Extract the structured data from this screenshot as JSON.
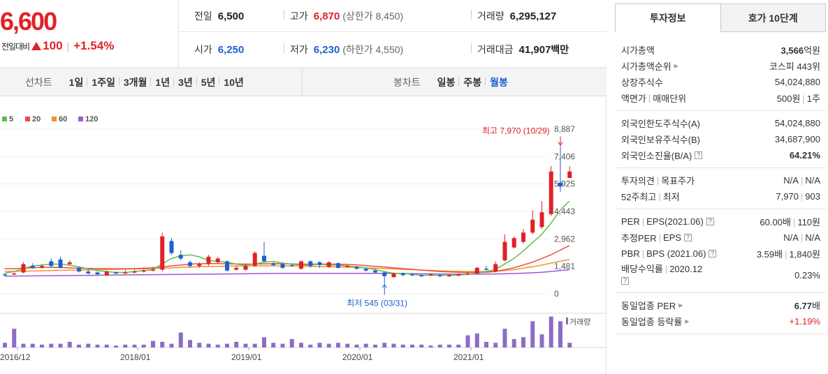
{
  "price": {
    "current": "6,600",
    "diff_label": "전일대비",
    "diff_value": "100",
    "diff_rate": "+1.54%"
  },
  "quote": {
    "prev_close_label": "전일",
    "prev_close": "6,500",
    "high_label": "고가",
    "high": "6,870",
    "upper_limit": "(상한가 8,450)",
    "volume_label": "거래량",
    "volume": "6,295,127",
    "open_label": "시가",
    "open": "6,250",
    "low_label": "저가",
    "low": "6,230",
    "lower_limit": "(하한가 4,550)",
    "turnover_label": "거래대금",
    "turnover": "41,907",
    "turnover_unit": "백만"
  },
  "toolbar": {
    "line_title": "선차트",
    "line_periods": [
      "1일",
      "1주일",
      "3개월",
      "1년",
      "3년",
      "5년",
      "10년"
    ],
    "candle_title": "봉차트",
    "candle_periods": [
      "일봉",
      "주봉",
      "월봉"
    ],
    "candle_active": 2
  },
  "colors": {
    "up": "#e12127",
    "down": "#1f5fd1",
    "ma5": "#5cbf4a",
    "ma20": "#ef4b4b",
    "ma60": "#f39423",
    "ma120": "#9b59d6",
    "volume": "#8d6cc6"
  },
  "chart_data": {
    "type": "candlestick",
    "title": "",
    "legend": [
      "5",
      "20",
      "60",
      "120"
    ],
    "y_ticks": [
      "8,887",
      "7,406",
      "5,925",
      "4,443",
      "2,962",
      "1,481",
      "0"
    ],
    "ylim": [
      0,
      8887
    ],
    "x_ticks": [
      "2016/12",
      "2018/01",
      "2019/01",
      "2020/01",
      "2021/01"
    ],
    "max_label": "최고 7,970 (10/29)",
    "min_label": "최저 545 (03/31)",
    "volume_label": "거래량",
    "candles": [
      {
        "o": 1050,
        "c": 1000,
        "h": 1100,
        "l": 950
      },
      {
        "o": 1050,
        "c": 1100,
        "h": 1150,
        "l": 1000
      },
      {
        "o": 1150,
        "c": 1600,
        "h": 1700,
        "l": 1100
      },
      {
        "o": 1500,
        "c": 1400,
        "h": 1650,
        "l": 1350
      },
      {
        "o": 1400,
        "c": 1500,
        "h": 1600,
        "l": 1350
      },
      {
        "o": 1750,
        "c": 1500,
        "h": 1900,
        "l": 1400
      },
      {
        "o": 1850,
        "c": 1400,
        "h": 2000,
        "l": 1350
      },
      {
        "o": 1600,
        "c": 1700,
        "h": 1800,
        "l": 1550
      },
      {
        "o": 1400,
        "c": 1200,
        "h": 1450,
        "l": 1150
      },
      {
        "o": 1200,
        "c": 1100,
        "h": 1300,
        "l": 1050
      },
      {
        "o": 1150,
        "c": 1050,
        "h": 1200,
        "l": 1000
      },
      {
        "o": 1000,
        "c": 1200,
        "h": 1250,
        "l": 950
      },
      {
        "o": 1150,
        "c": 1100,
        "h": 1200,
        "l": 1050
      },
      {
        "o": 1100,
        "c": 1150,
        "h": 1300,
        "l": 1050
      },
      {
        "o": 1150,
        "c": 1200,
        "h": 1300,
        "l": 1100
      },
      {
        "o": 1200,
        "c": 1250,
        "h": 1400,
        "l": 1150
      },
      {
        "o": 1250,
        "c": 1300,
        "h": 1450,
        "l": 1200
      },
      {
        "o": 1300,
        "c": 3100,
        "h": 3300,
        "l": 1200
      },
      {
        "o": 2850,
        "c": 2200,
        "h": 3000,
        "l": 2100
      },
      {
        "o": 2100,
        "c": 1900,
        "h": 2350,
        "l": 1800
      },
      {
        "o": 1700,
        "c": 1500,
        "h": 1800,
        "l": 1400
      },
      {
        "o": 1500,
        "c": 1600,
        "h": 1700,
        "l": 1400
      },
      {
        "o": 1600,
        "c": 2000,
        "h": 2100,
        "l": 1500
      },
      {
        "o": 1700,
        "c": 1900,
        "h": 2000,
        "l": 1600
      },
      {
        "o": 1750,
        "c": 1250,
        "h": 1800,
        "l": 1200
      },
      {
        "o": 1300,
        "c": 1400,
        "h": 1500,
        "l": 1250
      },
      {
        "o": 1300,
        "c": 1500,
        "h": 1600,
        "l": 1250
      },
      {
        "o": 1500,
        "c": 2200,
        "h": 2300,
        "l": 1450
      },
      {
        "o": 2050,
        "c": 1750,
        "h": 2800,
        "l": 1700
      },
      {
        "o": 1650,
        "c": 1550,
        "h": 1700,
        "l": 1500
      },
      {
        "o": 1600,
        "c": 1400,
        "h": 1700,
        "l": 1350
      },
      {
        "o": 1550,
        "c": 1500,
        "h": 1600,
        "l": 1450
      },
      {
        "o": 1350,
        "c": 1750,
        "h": 1800,
        "l": 1300
      },
      {
        "o": 1750,
        "c": 1500,
        "h": 1800,
        "l": 1400
      },
      {
        "o": 1700,
        "c": 1550,
        "h": 1750,
        "l": 1400
      },
      {
        "o": 1450,
        "c": 1700,
        "h": 1750,
        "l": 1400
      },
      {
        "o": 1650,
        "c": 1400,
        "h": 1700,
        "l": 1350
      },
      {
        "o": 1450,
        "c": 1500,
        "h": 1550,
        "l": 1400
      },
      {
        "o": 1450,
        "c": 1350,
        "h": 1500,
        "l": 1300
      },
      {
        "o": 1350,
        "c": 1250,
        "h": 1400,
        "l": 1200
      },
      {
        "o": 1250,
        "c": 1150,
        "h": 1350,
        "l": 1100
      },
      {
        "o": 1150,
        "c": 950,
        "h": 1200,
        "l": 545
      },
      {
        "o": 900,
        "c": 1100,
        "h": 1150,
        "l": 850
      },
      {
        "o": 1100,
        "c": 1000,
        "h": 1150,
        "l": 950
      },
      {
        "o": 1050,
        "c": 1000,
        "h": 1100,
        "l": 950
      },
      {
        "o": 1000,
        "c": 950,
        "h": 1050,
        "l": 900
      },
      {
        "o": 1000,
        "c": 1050,
        "h": 1100,
        "l": 950
      },
      {
        "o": 1000,
        "c": 950,
        "h": 1050,
        "l": 900
      },
      {
        "o": 950,
        "c": 1000,
        "h": 1050,
        "l": 900
      },
      {
        "o": 1000,
        "c": 1050,
        "h": 1100,
        "l": 950
      },
      {
        "o": 1050,
        "c": 1100,
        "h": 1150,
        "l": 1000
      },
      {
        "o": 1100,
        "c": 1400,
        "h": 1450,
        "l": 1050
      },
      {
        "o": 1350,
        "c": 1300,
        "h": 1500,
        "l": 1250
      },
      {
        "o": 1200,
        "c": 1600,
        "h": 1750,
        "l": 1150
      },
      {
        "o": 1800,
        "c": 2800,
        "h": 3200,
        "l": 1750
      },
      {
        "o": 2500,
        "c": 3000,
        "h": 3100,
        "l": 2450
      },
      {
        "o": 2800,
        "c": 3300,
        "h": 3500,
        "l": 2700
      },
      {
        "o": 3300,
        "c": 4000,
        "h": 4500,
        "l": 3200
      },
      {
        "o": 3600,
        "c": 4400,
        "h": 5000,
        "l": 3500
      },
      {
        "o": 4300,
        "c": 6600,
        "h": 6900,
        "l": 4200
      },
      {
        "o": 6000,
        "c": 5800,
        "h": 7970,
        "l": 5500
      },
      {
        "o": 6250,
        "c": 6600,
        "h": 6870,
        "l": 6230
      }
    ],
    "ma5": [
      1100,
      1200,
      1350,
      1500,
      1550,
      1600,
      1600,
      1550,
      1450,
      1350,
      1250,
      1200,
      1150,
      1150,
      1200,
      1250,
      1300,
      1600,
      1900,
      2050,
      2100,
      2000,
      1800,
      1750,
      1700,
      1600,
      1550,
      1600,
      1700,
      1750,
      1650,
      1600,
      1550,
      1550,
      1600,
      1550,
      1550,
      1500,
      1450,
      1400,
      1300,
      1200,
      1100,
      1100,
      1050,
      1000,
      1000,
      1000,
      1000,
      1000,
      1050,
      1100,
      1200,
      1300,
      1600,
      1900,
      2300,
      2750,
      3200,
      3800,
      4500,
      5000
    ],
    "ma20": [
      1350,
      1350,
      1380,
      1400,
      1420,
      1420,
      1420,
      1400,
      1380,
      1370,
      1360,
      1350,
      1350,
      1350,
      1360,
      1380,
      1400,
      1450,
      1500,
      1550,
      1600,
      1620,
      1630,
      1630,
      1620,
      1610,
      1600,
      1600,
      1610,
      1620,
      1620,
      1610,
      1600,
      1600,
      1600,
      1600,
      1600,
      1580,
      1560,
      1520,
      1480,
      1440,
      1400,
      1360,
      1320,
      1280,
      1240,
      1200,
      1180,
      1160,
      1150,
      1150,
      1160,
      1200,
      1300,
      1400,
      1550,
      1700,
      1900,
      2100,
      2350,
      2600
    ],
    "ma60": [
      1200,
      1210,
      1220,
      1230,
      1240,
      1250,
      1260,
      1270,
      1280,
      1290,
      1300,
      1310,
      1320,
      1330,
      1340,
      1350,
      1360,
      1380,
      1400,
      1420,
      1440,
      1460,
      1470,
      1480,
      1490,
      1500,
      1500,
      1500,
      1500,
      1500,
      1500,
      1500,
      1490,
      1480,
      1470,
      1460,
      1450,
      1440,
      1420,
      1400,
      1380,
      1360,
      1340,
      1320,
      1300,
      1280,
      1260,
      1240,
      1220,
      1210,
      1200,
      1200,
      1200,
      1210,
      1250,
      1300,
      1380,
      1450,
      1550,
      1650,
      1750,
      1850
    ],
    "ma120": [
      950,
      955,
      960,
      965,
      970,
      975,
      980,
      985,
      990,
      995,
      1000,
      1005,
      1010,
      1015,
      1020,
      1025,
      1030,
      1035,
      1040,
      1045,
      1050,
      1055,
      1060,
      1065,
      1070,
      1075,
      1080,
      1085,
      1090,
      1095,
      1100,
      1100,
      1100,
      1100,
      1100,
      1100,
      1100,
      1100,
      1100,
      1100,
      1100,
      1100,
      1095,
      1090,
      1085,
      1080,
      1075,
      1070,
      1065,
      1060,
      1060,
      1060,
      1065,
      1070,
      1080,
      1090,
      1110,
      1130,
      1160,
      1200,
      1250,
      1300
    ],
    "volume": [
      5,
      20,
      4,
      4,
      3,
      4,
      4,
      6,
      3,
      4,
      3,
      3,
      2,
      3,
      3,
      3,
      7,
      6,
      4,
      16,
      8,
      5,
      4,
      3,
      4,
      6,
      4,
      4,
      11,
      5,
      4,
      9,
      5,
      3,
      5,
      4,
      5,
      4,
      3,
      4,
      3,
      5,
      4,
      3,
      3,
      3,
      2,
      3,
      3,
      3,
      13,
      15,
      6,
      5,
      20,
      9,
      11,
      28,
      14,
      33,
      28,
      5
    ],
    "volume_max": 35
  },
  "invest_tabs": [
    "투자정보",
    "호가 10단계"
  ],
  "info_sections": [
    [
      {
        "k": "시가총액",
        "v": "3,566",
        "vunit": "억원",
        "bold": true
      },
      {
        "k": "시가총액순위",
        "arrow": true,
        "v": "코스피 443위"
      },
      {
        "k": "상장주식수",
        "v": "54,024,880"
      },
      {
        "k": "액면가",
        "k2": "매매단위",
        "v": "500원",
        "v2": "1주"
      }
    ],
    [
      {
        "k": "외국인한도주식수(A)",
        "v": "54,024,880"
      },
      {
        "k": "외국인보유주식수(B)",
        "v": "34,687,900"
      },
      {
        "k": "외국인소진율(B/A)",
        "help": true,
        "v": "64.21%",
        "bold": true
      }
    ],
    [
      {
        "k": "투자의견",
        "k2": "목표주가",
        "v": "N/A",
        "v2": "N/A"
      },
      {
        "k": "52주최고",
        "k2": "최저",
        "v": "7,970",
        "v2": "903"
      }
    ],
    [
      {
        "k": "PER",
        "k2": "EPS(2021.06)",
        "help": true,
        "v": "60.00배",
        "v2": "110원"
      },
      {
        "k": "추정PER",
        "k2": "EPS",
        "help": true,
        "v": "N/A",
        "v2": "N/A"
      },
      {
        "k": "PBR",
        "k2": "BPS (2021.06)",
        "help": true,
        "v": "3.59배",
        "v2": "1,840원"
      },
      {
        "k": "배당수익률",
        "k2": "2020.12",
        "help": true,
        "v": "0.23%",
        "tall": true
      }
    ],
    [
      {
        "k": "동일업종 PER",
        "arrow": true,
        "v": "6.77",
        "vunit": "배",
        "bold": true
      },
      {
        "k": "동일업종 등락률",
        "arrow": true,
        "v": "+1.19%",
        "red": true
      }
    ]
  ]
}
